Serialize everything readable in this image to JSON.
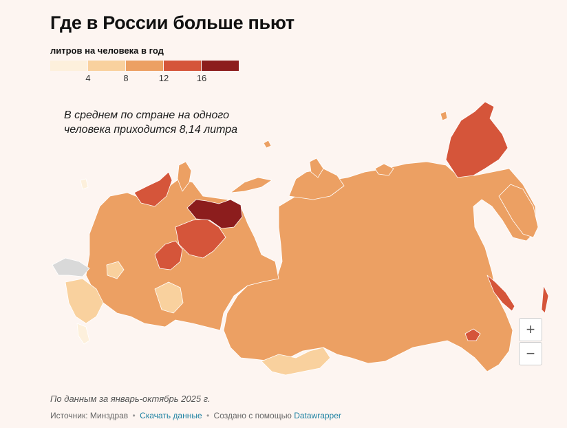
{
  "title": "Где в России больше пьют",
  "legend": {
    "title": "литров на человека в год",
    "ticks": [
      "4",
      "8",
      "12",
      "16"
    ],
    "tick_values": [
      4,
      8,
      12,
      16
    ],
    "colors": [
      "#fdf0dc",
      "#f9d19e",
      "#eca063",
      "#d5553a",
      "#8c1d1d"
    ]
  },
  "annotation": {
    "line1": "В среднем по стране на одного",
    "line2": "человека приходится 8,14 литра"
  },
  "map": {
    "no_data_color": "#d9d9d9",
    "border_color": "#ffffff"
  },
  "zoom": {
    "in_label": "+",
    "out_label": "−"
  },
  "footer": {
    "note": "По данным за январь-октябрь 2025 г.",
    "source_label": "Источник: Минздрав",
    "download_label": "Скачать данные",
    "created_label": "Создано с помощью",
    "tool_label": "Datawrapper",
    "separator": "•"
  }
}
